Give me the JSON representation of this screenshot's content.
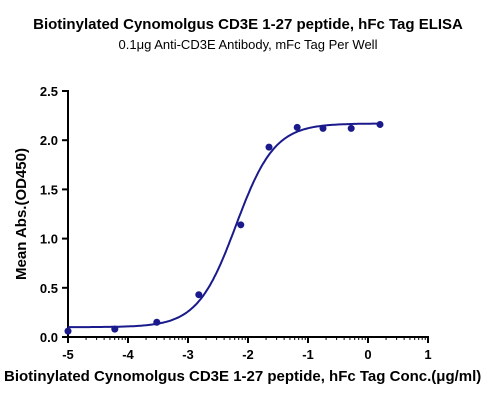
{
  "chart_data": {
    "type": "scatter",
    "title": "Biotinylated Cynomolgus CD3E 1-27 peptide, hFc Tag ELISA",
    "subtitle": "0.1μg Anti-CD3E Antibody, mFc Tag Per Well",
    "xlabel": "Biotinylated Cynomolgus CD3E 1-27 peptide, hFc Tag Conc.(μg/ml)",
    "ylabel": "Mean Abs.(OD450)",
    "xlim": [
      -5,
      1
    ],
    "ylim": [
      0,
      2.5
    ],
    "x_ticks": [
      "-5",
      "-4",
      "-3",
      "-2",
      "-1",
      "0",
      "1"
    ],
    "y_ticks": [
      "0.0",
      "0.5",
      "1.0",
      "1.5",
      "2.0",
      "2.5"
    ],
    "grid": false,
    "points": {
      "x": [
        -5.0,
        -4.22,
        -3.52,
        -2.82,
        -2.12,
        -1.65,
        -1.18,
        -0.75,
        -0.28,
        0.2
      ],
      "y": [
        0.06,
        0.08,
        0.15,
        0.43,
        1.14,
        1.93,
        2.13,
        2.12,
        2.12,
        2.16
      ]
    },
    "fit_curve": {
      "model": "4PL",
      "bottom": 0.1,
      "top": 2.17,
      "logEC50": -2.2,
      "hill": 1.35
    },
    "color": "#1a1a8c"
  }
}
